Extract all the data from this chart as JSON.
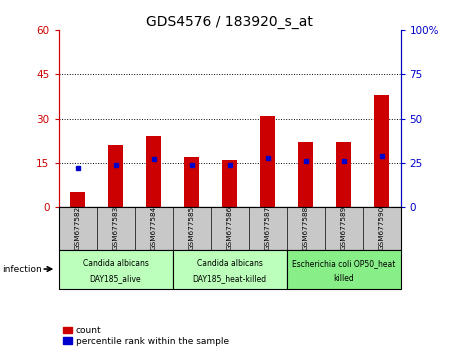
{
  "title": "GDS4576 / 183920_s_at",
  "samples": [
    "GSM677582",
    "GSM677583",
    "GSM677584",
    "GSM677585",
    "GSM677586",
    "GSM677587",
    "GSM677588",
    "GSM677589",
    "GSM677590"
  ],
  "count_values": [
    5,
    21,
    24,
    17,
    16,
    31,
    22,
    22,
    38
  ],
  "percentile_values": [
    22,
    24,
    27,
    24,
    24,
    28,
    26,
    26,
    29
  ],
  "left_ylim": [
    0,
    60
  ],
  "right_ylim": [
    0,
    100
  ],
  "left_yticks": [
    0,
    15,
    30,
    45,
    60
  ],
  "right_yticks": [
    0,
    25,
    50,
    75,
    100
  ],
  "right_yticklabels": [
    "0",
    "25",
    "50",
    "75",
    "100%"
  ],
  "bar_color": "#cc0000",
  "percentile_color": "#0000cc",
  "groups": [
    {
      "label_line1": "Candida albicans",
      "label_line2": "DAY185_alive",
      "start": 0,
      "end": 3,
      "color": "#bbffbb"
    },
    {
      "label_line1": "Candida albicans",
      "label_line2": "DAY185_heat-killed",
      "start": 3,
      "end": 6,
      "color": "#bbffbb"
    },
    {
      "label_line1": "Escherichia coli OP50_heat",
      "label_line2": "killed",
      "start": 6,
      "end": 9,
      "color": "#88ee88"
    }
  ],
  "infection_label": "infection",
  "legend_count_label": "count",
  "legend_percentile_label": "percentile rank within the sample",
  "bg_color": "#ffffff",
  "tick_area_color": "#c8c8c8",
  "bar_width": 0.4
}
